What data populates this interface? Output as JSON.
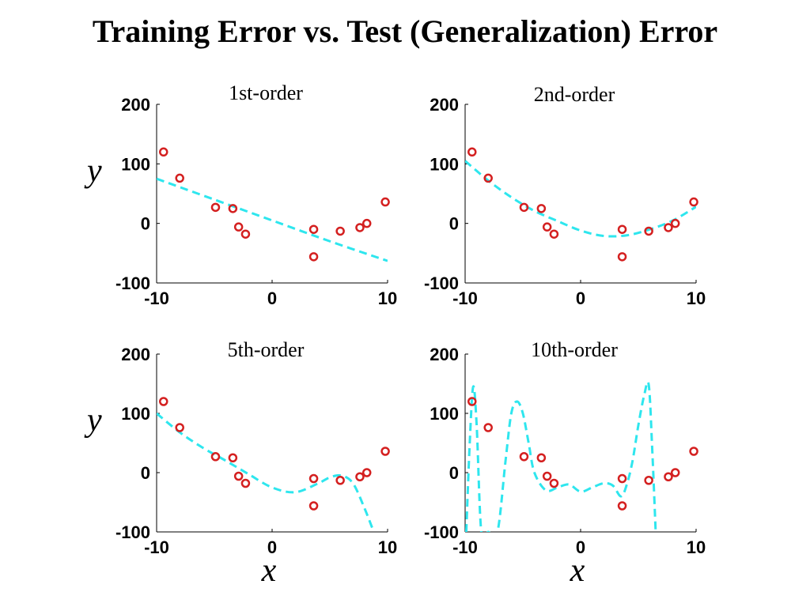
{
  "title": "Training Error vs. Test (Generalization) Error",
  "colors": {
    "points": "#d42020",
    "fit": "#2ee6ee"
  },
  "chart_data": [
    {
      "type": "scatter",
      "title": "1st-order",
      "xlabel": "",
      "ylabel": "y",
      "xlim": [
        -10,
        10
      ],
      "ylim": [
        -100,
        200
      ],
      "xticks": [
        "-10",
        "0",
        "10"
      ],
      "yticks": [
        "200",
        "100",
        "0",
        "-100"
      ],
      "points": {
        "x": [
          -9.4,
          -8.0,
          -4.9,
          -3.4,
          -2.9,
          -2.3,
          3.6,
          5.9,
          7.6,
          8.2,
          9.8
        ],
        "y": [
          120,
          76,
          27,
          25,
          -6,
          -18,
          -10,
          -13,
          -7,
          0,
          36
        ]
      },
      "test_point": {
        "x": 3.6,
        "y": -56
      },
      "fit": {
        "x": [
          -10,
          -5,
          0,
          5,
          10
        ],
        "y": [
          75,
          40,
          5,
          -30,
          -63
        ]
      }
    },
    {
      "type": "scatter",
      "title": "2nd-order",
      "xlabel": "",
      "ylabel": "",
      "xlim": [
        -10,
        10
      ],
      "ylim": [
        -100,
        200
      ],
      "xticks": [
        "-10",
        "0",
        "10"
      ],
      "yticks": [
        "200",
        "100",
        "0",
        "-100"
      ],
      "points": {
        "x": [
          -9.4,
          -8.0,
          -4.9,
          -3.4,
          -2.9,
          -2.3,
          3.6,
          5.9,
          7.6,
          8.2,
          9.8
        ],
        "y": [
          120,
          76,
          27,
          25,
          -6,
          -18,
          -10,
          -13,
          -7,
          0,
          36
        ]
      },
      "test_point": {
        "x": 3.6,
        "y": -56
      },
      "fit": {
        "x": [
          -10,
          -8,
          -6,
          -4,
          -2,
          0,
          2,
          4,
          6,
          8,
          10
        ],
        "y": [
          105,
          72,
          44,
          21,
          4,
          -12,
          -21,
          -20,
          -10,
          5,
          28
        ]
      }
    },
    {
      "type": "scatter",
      "title": "5th-order",
      "xlabel": "x",
      "ylabel": "y",
      "xlim": [
        -10,
        10
      ],
      "ylim": [
        -100,
        200
      ],
      "xticks": [
        "-10",
        "0",
        "10"
      ],
      "yticks": [
        "200",
        "100",
        "0",
        "-100"
      ],
      "points": {
        "x": [
          -9.4,
          -8.0,
          -4.9,
          -3.4,
          -2.9,
          -2.3,
          3.6,
          5.9,
          7.6,
          8.2,
          9.8
        ],
        "y": [
          120,
          76,
          27,
          25,
          -6,
          -18,
          -10,
          -13,
          -7,
          0,
          36
        ]
      },
      "test_point": {
        "x": 3.6,
        "y": -56
      },
      "fit": {
        "x": [
          -10,
          -8,
          -6,
          -4,
          -2,
          0,
          2,
          4,
          5,
          6,
          7,
          8,
          8.8
        ],
        "y": [
          100,
          68,
          42,
          20,
          -3,
          -25,
          -33,
          -18,
          -8,
          -5,
          -18,
          -60,
          -100
        ]
      }
    },
    {
      "type": "scatter",
      "title": "10th-order",
      "xlabel": "x",
      "ylabel": "",
      "xlim": [
        -10,
        10
      ],
      "ylim": [
        -100,
        200
      ],
      "xticks": [
        "-10",
        "0",
        "10"
      ],
      "yticks": [
        "200",
        "100",
        "0",
        "-100"
      ],
      "points": {
        "x": [
          -9.4,
          -8.0,
          -4.9,
          -3.4,
          -2.9,
          -2.3,
          3.6,
          5.9,
          7.6,
          8.2,
          9.8
        ],
        "y": [
          120,
          76,
          27,
          25,
          -6,
          -18,
          -10,
          -13,
          -7,
          0,
          36
        ]
      },
      "test_point": {
        "x": 3.6,
        "y": -56
      },
      "fit": {
        "x": [
          -9.9,
          -9.6,
          -9.3,
          -9.0,
          -8.6,
          -8.0,
          -7.2,
          -6.5,
          -6.0,
          -5.5,
          -5.0,
          -4.5,
          -4.0,
          -3.0,
          -2.0,
          -1.0,
          0.0,
          1.0,
          2.0,
          2.8,
          3.5,
          4.0,
          4.5,
          5.0,
          5.5,
          5.9,
          6.2,
          6.5
        ],
        "y": [
          -100,
          50,
          145,
          80,
          -100,
          -100,
          -100,
          20,
          100,
          120,
          100,
          50,
          0,
          -30,
          -25,
          -20,
          -32,
          -25,
          -18,
          -22,
          -40,
          -20,
          20,
          80,
          130,
          148,
          40,
          -100
        ]
      }
    }
  ]
}
